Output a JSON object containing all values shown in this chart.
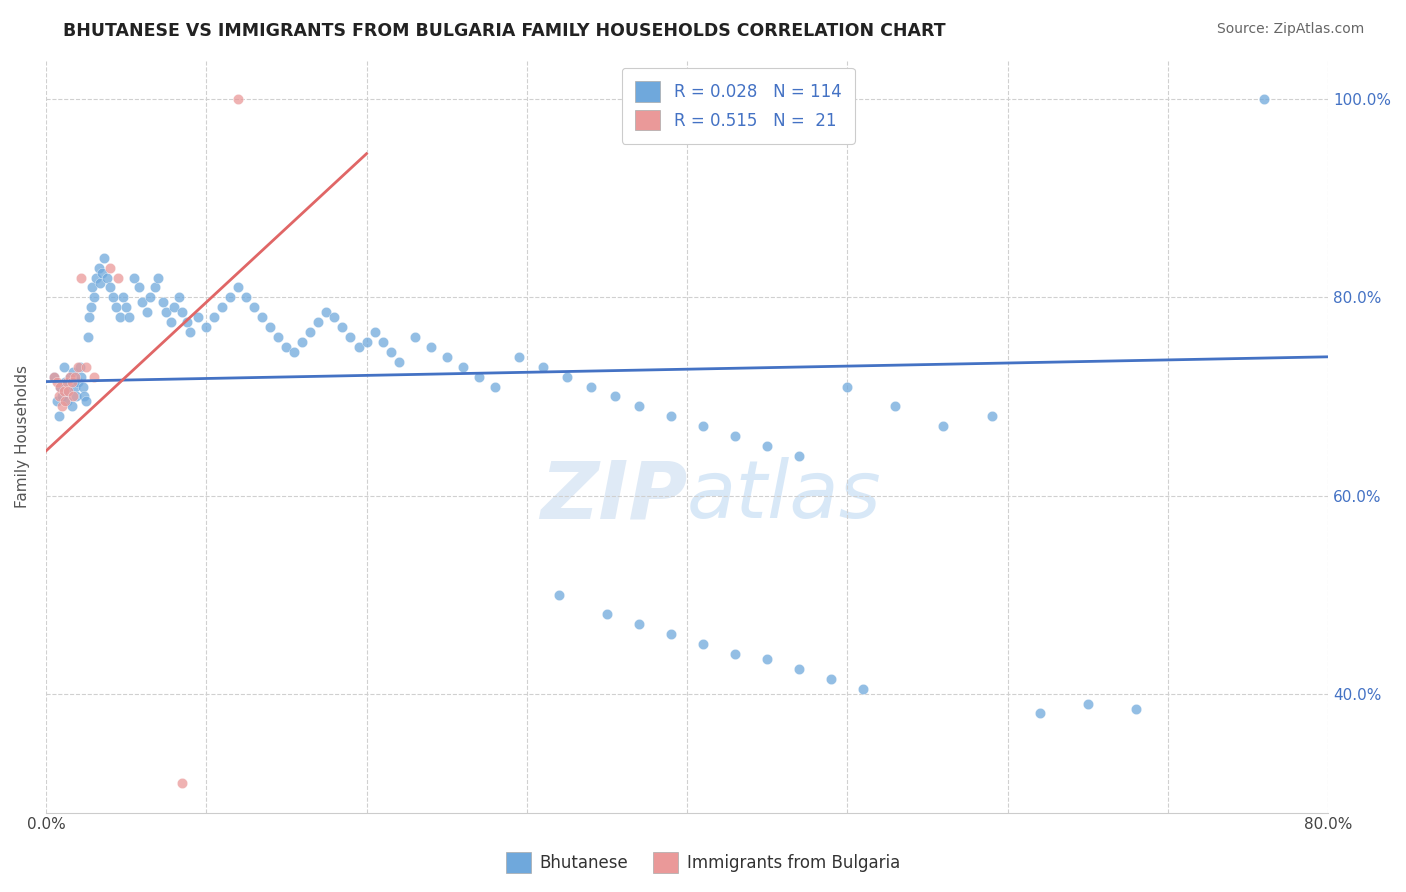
{
  "title": "BHUTANESE VS IMMIGRANTS FROM BULGARIA FAMILY HOUSEHOLDS CORRELATION CHART",
  "source": "Source: ZipAtlas.com",
  "ylabel": "Family Households",
  "xlim": [
    0.0,
    0.8
  ],
  "ylim": [
    0.28,
    1.04
  ],
  "blue_color": "#6fa8dc",
  "pink_color": "#ea9999",
  "blue_line_color": "#4472c4",
  "pink_line_color": "#e06666",
  "R_blue": 0.028,
  "N_blue": 114,
  "R_pink": 0.515,
  "N_pink": 21,
  "legend_labels": [
    "Bhutanese",
    "Immigrants from Bulgaria"
  ],
  "blue_line_y0": 0.715,
  "blue_line_y1": 0.74,
  "pink_line_y0": 0.645,
  "pink_line_y1": 0.945,
  "pink_line_x0": 0.0,
  "pink_line_x1": 0.2,
  "bhutanese_x": [
    0.005,
    0.007,
    0.008,
    0.009,
    0.01,
    0.011,
    0.012,
    0.013,
    0.014,
    0.015,
    0.016,
    0.017,
    0.018,
    0.019,
    0.02,
    0.021,
    0.022,
    0.023,
    0.024,
    0.025,
    0.026,
    0.027,
    0.028,
    0.029,
    0.03,
    0.031,
    0.033,
    0.034,
    0.035,
    0.036,
    0.038,
    0.04,
    0.042,
    0.044,
    0.046,
    0.048,
    0.05,
    0.052,
    0.055,
    0.058,
    0.06,
    0.063,
    0.065,
    0.068,
    0.07,
    0.073,
    0.075,
    0.078,
    0.08,
    0.083,
    0.085,
    0.088,
    0.09,
    0.095,
    0.1,
    0.105,
    0.11,
    0.115,
    0.12,
    0.125,
    0.13,
    0.135,
    0.14,
    0.145,
    0.15,
    0.155,
    0.16,
    0.165,
    0.17,
    0.175,
    0.18,
    0.185,
    0.19,
    0.195,
    0.2,
    0.205,
    0.21,
    0.215,
    0.22,
    0.23,
    0.24,
    0.25,
    0.26,
    0.27,
    0.28,
    0.295,
    0.31,
    0.325,
    0.34,
    0.355,
    0.37,
    0.39,
    0.41,
    0.43,
    0.45,
    0.47,
    0.5,
    0.53,
    0.56,
    0.59,
    0.32,
    0.35,
    0.37,
    0.39,
    0.41,
    0.43,
    0.45,
    0.47,
    0.49,
    0.51,
    0.62,
    0.65,
    0.68,
    0.76
  ],
  "bhutanese_y": [
    0.72,
    0.695,
    0.68,
    0.71,
    0.7,
    0.73,
    0.715,
    0.695,
    0.705,
    0.72,
    0.69,
    0.725,
    0.71,
    0.7,
    0.715,
    0.73,
    0.72,
    0.71,
    0.7,
    0.695,
    0.76,
    0.78,
    0.79,
    0.81,
    0.8,
    0.82,
    0.83,
    0.815,
    0.825,
    0.84,
    0.82,
    0.81,
    0.8,
    0.79,
    0.78,
    0.8,
    0.79,
    0.78,
    0.82,
    0.81,
    0.795,
    0.785,
    0.8,
    0.81,
    0.82,
    0.795,
    0.785,
    0.775,
    0.79,
    0.8,
    0.785,
    0.775,
    0.765,
    0.78,
    0.77,
    0.78,
    0.79,
    0.8,
    0.81,
    0.8,
    0.79,
    0.78,
    0.77,
    0.76,
    0.75,
    0.745,
    0.755,
    0.765,
    0.775,
    0.785,
    0.78,
    0.77,
    0.76,
    0.75,
    0.755,
    0.765,
    0.755,
    0.745,
    0.735,
    0.76,
    0.75,
    0.74,
    0.73,
    0.72,
    0.71,
    0.74,
    0.73,
    0.72,
    0.71,
    0.7,
    0.69,
    0.68,
    0.67,
    0.66,
    0.65,
    0.64,
    0.71,
    0.69,
    0.67,
    0.68,
    0.5,
    0.48,
    0.47,
    0.46,
    0.45,
    0.44,
    0.435,
    0.425,
    0.415,
    0.405,
    0.38,
    0.39,
    0.385,
    1.0
  ],
  "bulgaria_x": [
    0.005,
    0.007,
    0.008,
    0.009,
    0.01,
    0.011,
    0.012,
    0.013,
    0.014,
    0.015,
    0.016,
    0.017,
    0.018,
    0.02,
    0.022,
    0.025,
    0.03,
    0.04,
    0.045,
    0.085,
    0.12
  ],
  "bulgaria_y": [
    0.72,
    0.715,
    0.7,
    0.71,
    0.69,
    0.705,
    0.695,
    0.715,
    0.705,
    0.72,
    0.715,
    0.7,
    0.72,
    0.73,
    0.82,
    0.73,
    0.72,
    0.83,
    0.82,
    0.31,
    1.0
  ]
}
